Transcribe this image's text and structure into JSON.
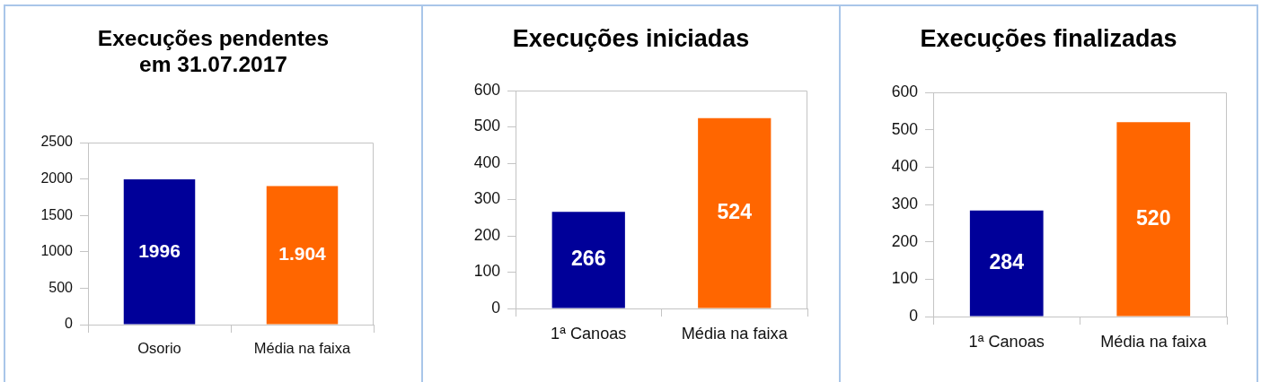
{
  "chart_data": [
    {
      "type": "bar",
      "title": "Execuções pendentes\nem 31.07.2017",
      "categories": [
        "Osorio",
        "Média na faixa"
      ],
      "values": [
        1996,
        1904
      ],
      "colors": [
        "#000099",
        "#ff6600"
      ],
      "ylim": [
        0,
        2500
      ],
      "yticks": [
        0,
        500,
        1000,
        1500,
        2000,
        2500
      ],
      "value_labels": [
        "1996",
        "1.904"
      ]
    },
    {
      "type": "bar",
      "title": "Execuções iniciadas",
      "categories": [
        "1ª Canoas",
        "Média na faixa"
      ],
      "values": [
        266,
        524
      ],
      "colors": [
        "#000099",
        "#ff6600"
      ],
      "ylim": [
        0,
        600
      ],
      "yticks": [
        0,
        100,
        200,
        300,
        400,
        500,
        600
      ],
      "data_labels": true
    },
    {
      "type": "bar",
      "title": "Execuções finalizadas",
      "categories": [
        "1ª Canoas",
        "Média na faixa"
      ],
      "values": [
        284,
        520
      ],
      "colors": [
        "#000099",
        "#ff6600"
      ],
      "ylim": [
        0,
        600
      ],
      "yticks": [
        0,
        100,
        200,
        300,
        400,
        500,
        600
      ],
      "data_labels": true
    }
  ]
}
